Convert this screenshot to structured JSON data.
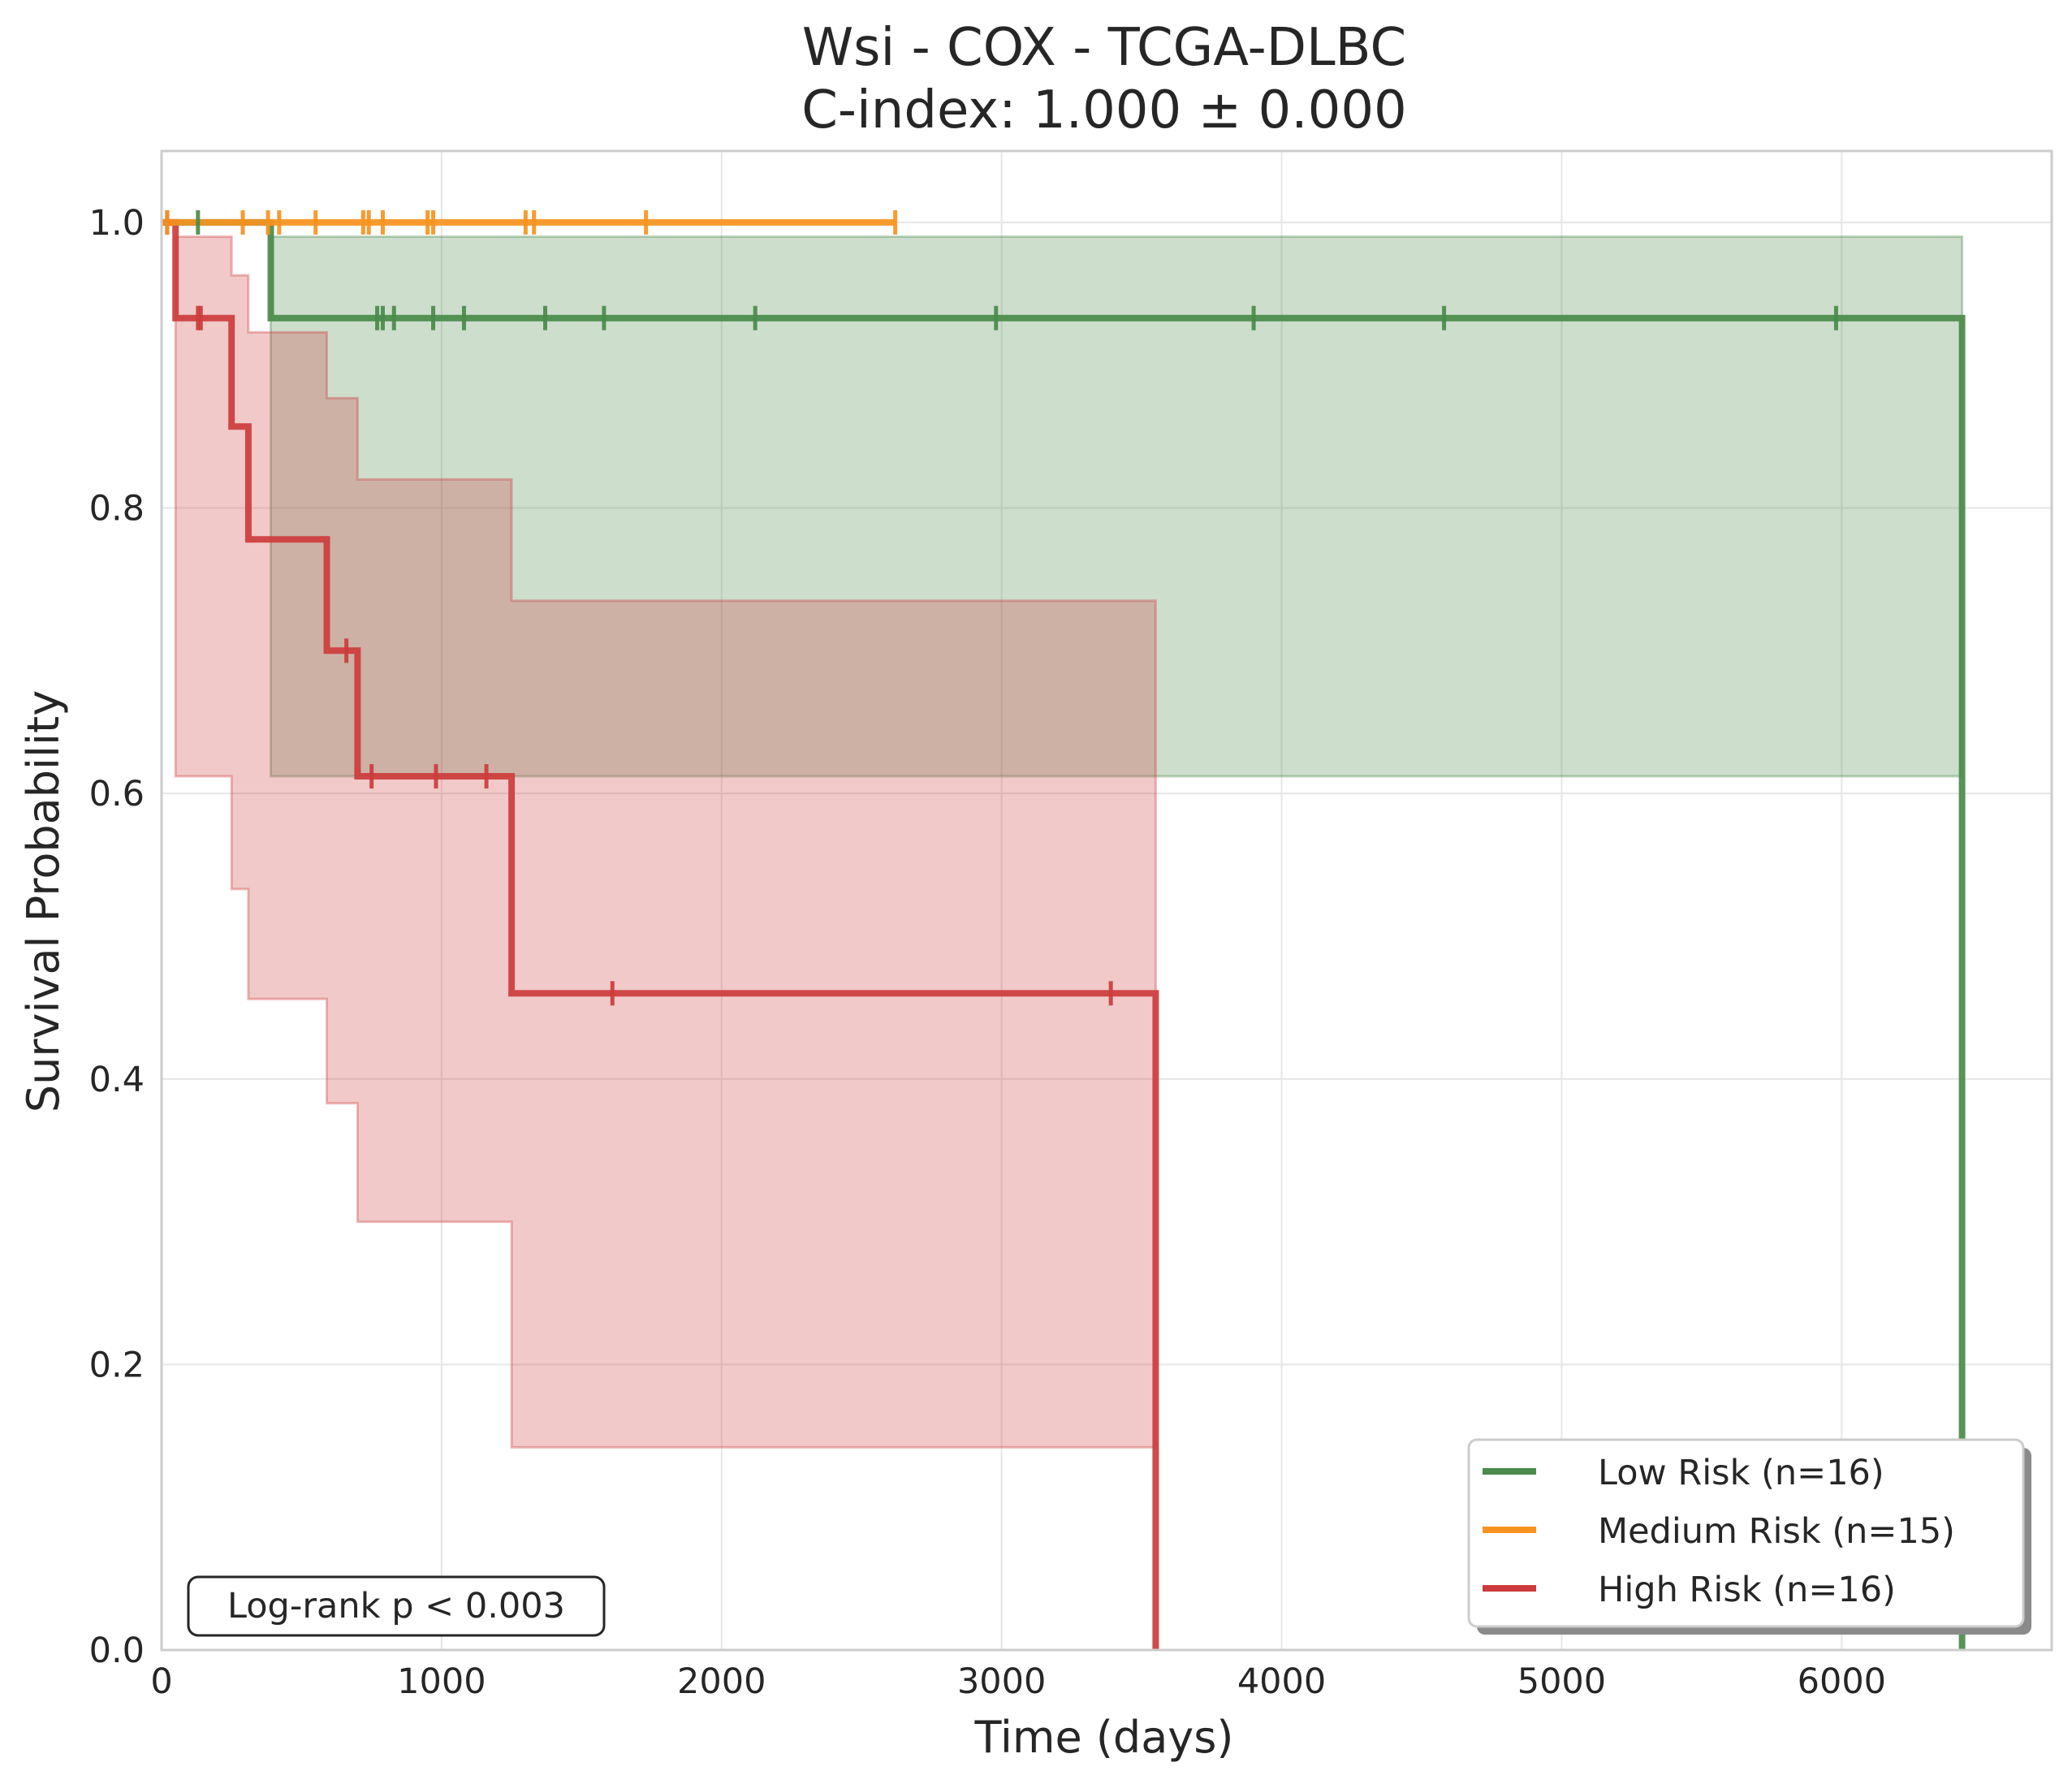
{
  "chart_data": {
    "type": "line",
    "title": "Wsi - COX - TCGA-DLBC",
    "subtitle": "C-index: 1.000 ± 0.000",
    "xlabel": "Time (days)",
    "ylabel": "Survival Probability",
    "xlim": [
      0,
      6750
    ],
    "ylim": [
      0,
      1.05
    ],
    "xticks": [
      0,
      1000,
      2000,
      3000,
      4000,
      5000,
      6000
    ],
    "yticks": [
      0.0,
      0.2,
      0.4,
      0.6,
      0.8,
      1.0
    ],
    "xtick_labels": [
      "0",
      "1000",
      "2000",
      "3000",
      "4000",
      "5000",
      "6000"
    ],
    "ytick_labels": [
      "0.0",
      "0.2",
      "0.4",
      "0.6",
      "0.8",
      "1.0"
    ],
    "grid": true,
    "legend_position": "bottom-right",
    "annotation": "Log-rank p < 0.003",
    "series": [
      {
        "name": "Low Risk (n=16)",
        "color": "#4a8a4a",
        "steps": [
          [
            0,
            1.0
          ],
          [
            390,
            0.933
          ],
          [
            6430,
            0.0
          ]
        ],
        "end": 6430,
        "ci": [
          {
            "x0": 390,
            "x1": 6430,
            "lo": 0.612,
            "hi": 0.99
          }
        ],
        "censors": [
          [
            130,
            1.0
          ],
          [
            770,
            0.933
          ],
          [
            790,
            0.933
          ],
          [
            830,
            0.933
          ],
          [
            970,
            0.933
          ],
          [
            1080,
            0.933
          ],
          [
            1370,
            0.933
          ],
          [
            1580,
            0.933
          ],
          [
            2120,
            0.933
          ],
          [
            2980,
            0.933
          ],
          [
            3900,
            0.933
          ],
          [
            4580,
            0.933
          ],
          [
            5980,
            0.933
          ]
        ]
      },
      {
        "name": "Medium Risk (n=15)",
        "color": "#f7931e",
        "steps": [
          [
            0,
            1.0
          ]
        ],
        "end": 2620,
        "ci": [],
        "censors": [
          [
            20,
            1.0
          ],
          [
            290,
            1.0
          ],
          [
            380,
            1.0
          ],
          [
            420,
            1.0
          ],
          [
            550,
            1.0
          ],
          [
            720,
            1.0
          ],
          [
            740,
            1.0
          ],
          [
            790,
            1.0
          ],
          [
            950,
            1.0
          ],
          [
            970,
            1.0
          ],
          [
            1300,
            1.0
          ],
          [
            1330,
            1.0
          ],
          [
            1730,
            1.0
          ],
          [
            2620,
            1.0
          ]
        ]
      },
      {
        "name": "High Risk (n=16)",
        "color": "#cd3c3c",
        "steps": [
          [
            0,
            1.0
          ],
          [
            50,
            0.933
          ],
          [
            250,
            0.857
          ],
          [
            310,
            0.778
          ],
          [
            590,
            0.7
          ],
          [
            700,
            0.612
          ],
          [
            1250,
            0.46
          ],
          [
            3550,
            0.0
          ]
        ],
        "end": 3550,
        "ci": [
          {
            "x0": 50,
            "x1": 250,
            "lo": 0.612,
            "hi": 0.99
          },
          {
            "x0": 250,
            "x1": 310,
            "lo": 0.533,
            "hi": 0.963
          },
          {
            "x0": 310,
            "x1": 590,
            "lo": 0.456,
            "hi": 0.923
          },
          {
            "x0": 590,
            "x1": 700,
            "lo": 0.383,
            "hi": 0.877
          },
          {
            "x0": 700,
            "x1": 1250,
            "lo": 0.3,
            "hi": 0.82
          },
          {
            "x0": 1250,
            "x1": 3550,
            "lo": 0.142,
            "hi": 0.735
          }
        ],
        "censors": [
          [
            20,
            1.0
          ],
          [
            130,
            0.933
          ],
          [
            140,
            0.933
          ],
          [
            660,
            0.7
          ],
          [
            750,
            0.612
          ],
          [
            980,
            0.612
          ],
          [
            1160,
            0.612
          ],
          [
            1610,
            0.46
          ],
          [
            3390,
            0.46
          ]
        ]
      }
    ]
  }
}
